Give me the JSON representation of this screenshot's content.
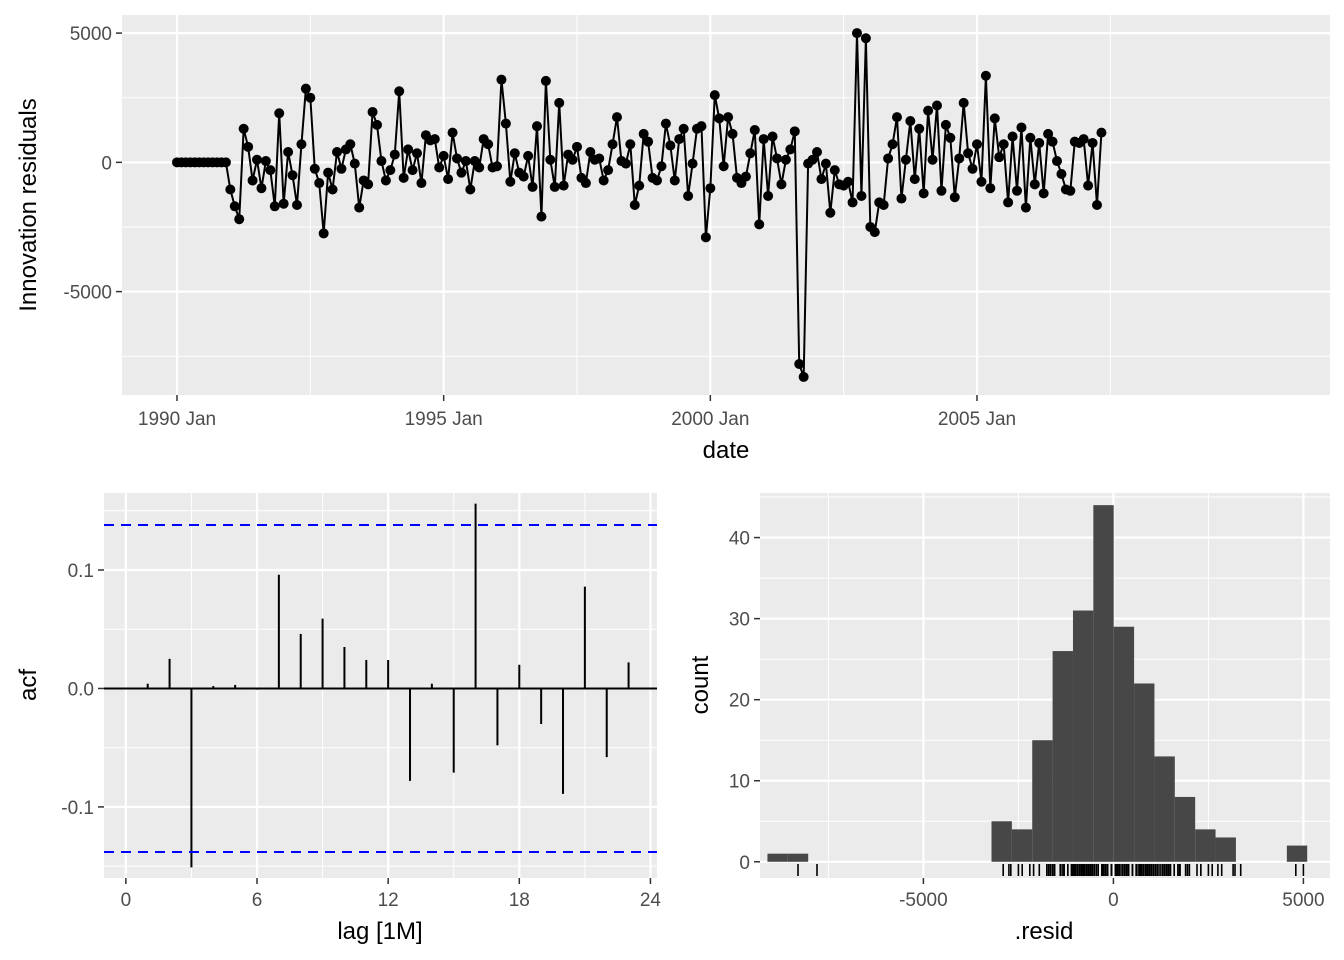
{
  "chart_data": [
    {
      "type": "line",
      "xlabel": "date",
      "ylabel": "Innovation residuals",
      "x_tick_labels": [
        "1990 Jan",
        "1995 Jan",
        "2000 Jan",
        "2005 Jan"
      ],
      "y_ticks": [
        5000,
        0,
        -5000
      ],
      "y_tick_labels": [
        "5000",
        "0",
        "-5000"
      ],
      "ylim": [
        -9000,
        5700
      ],
      "start": "1990 Jan",
      "frequency": "monthly",
      "line_color": "#000000",
      "values": [
        0,
        0,
        0,
        0,
        0,
        0,
        0,
        0,
        0,
        0,
        0,
        0,
        -1050,
        -1700,
        -2200,
        1300,
        600,
        -700,
        100,
        -1000,
        50,
        -300,
        -1700,
        1900,
        -1600,
        400,
        -500,
        -1650,
        700,
        2850,
        2500,
        -250,
        -800,
        -2750,
        -400,
        -1050,
        400,
        -250,
        500,
        700,
        -50,
        -1750,
        -700,
        -850,
        1950,
        1450,
        50,
        -700,
        -300,
        300,
        2750,
        -600,
        500,
        -300,
        350,
        -800,
        1050,
        850,
        900,
        -200,
        250,
        -650,
        1150,
        150,
        -400,
        50,
        -1050,
        50,
        -200,
        900,
        700,
        -200,
        -150,
        3200,
        1500,
        -750,
        350,
        -400,
        -550,
        250,
        -950,
        1400,
        -2100,
        3150,
        100,
        -950,
        2300,
        -900,
        300,
        100,
        600,
        -600,
        -800,
        400,
        100,
        150,
        -700,
        -300,
        700,
        1750,
        50,
        -50,
        700,
        -1650,
        -900,
        1100,
        800,
        -600,
        -700,
        -150,
        1500,
        650,
        -700,
        900,
        1300,
        -1300,
        -50,
        1300,
        1400,
        -2900,
        -1000,
        2600,
        1700,
        -150,
        1750,
        1100,
        -600,
        -800,
        -550,
        350,
        1250,
        -2400,
        900,
        -1300,
        1000,
        150,
        -850,
        100,
        500,
        1200,
        -7800,
        -8300,
        -50,
        100,
        400,
        -650,
        -50,
        -1950,
        -300,
        -850,
        -900,
        -750,
        -1550,
        5000,
        -1300,
        4800,
        -2500,
        -2700,
        -1550,
        -1650,
        150,
        700,
        1750,
        -1400,
        100,
        1600,
        -650,
        1300,
        -1200,
        2000,
        100,
        2200,
        -1100,
        1450,
        950,
        -1350,
        150,
        2300,
        350,
        -250,
        700,
        -750,
        3350,
        -1000,
        1700,
        200,
        700,
        -1550,
        1000,
        -1100,
        1350,
        -1750,
        950,
        -850,
        750,
        -1200,
        1100,
        800,
        50,
        -450,
        -1050,
        -1100,
        800,
        750,
        900,
        -900,
        750,
        -1650,
        1150
      ]
    },
    {
      "type": "bar",
      "xlabel": "lag [1M]",
      "ylabel": "acf",
      "x_ticks": [
        0,
        6,
        12,
        18,
        24
      ],
      "xlim": [
        0,
        24
      ],
      "y_ticks": [
        0.1,
        0.0,
        -0.1
      ],
      "y_tick_labels": [
        "0.1",
        "0.0",
        "-0.1"
      ],
      "ylim": [
        -0.16,
        0.165
      ],
      "lags": [
        1,
        2,
        3,
        4,
        5,
        6,
        7,
        8,
        9,
        10,
        11,
        12,
        13,
        14,
        15,
        16,
        17,
        18,
        19,
        20,
        21,
        22,
        23
      ],
      "values": [
        0.004,
        0.025,
        -0.151,
        0.002,
        0.003,
        -0.001,
        0.096,
        0.046,
        0.059,
        0.035,
        0.024,
        0.024,
        -0.078,
        0.004,
        -0.071,
        0.156,
        -0.048,
        0.02,
        -0.03,
        -0.089,
        0.086,
        -0.058,
        0.022
      ],
      "confidence_bounds": [
        0.138,
        -0.138
      ],
      "bound_color": "#0000ff"
    },
    {
      "type": "bar",
      "xlabel": ".resid",
      "ylabel": "count",
      "x_ticks": [
        -5000,
        0,
        5000
      ],
      "x_tick_labels": [
        "-5000",
        "0",
        "5000"
      ],
      "xlim": [
        -9300,
        5700
      ],
      "y_ticks": [
        0,
        10,
        20,
        30,
        40
      ],
      "ylim": [
        -2,
        45.5
      ],
      "bin_width": 536,
      "bins": [
        {
          "x": -8836,
          "count": 1
        },
        {
          "x": -8300,
          "count": 1
        },
        {
          "x": -2940,
          "count": 5
        },
        {
          "x": -2404,
          "count": 4
        },
        {
          "x": -1868,
          "count": 15
        },
        {
          "x": -1332,
          "count": 26
        },
        {
          "x": -796,
          "count": 31
        },
        {
          "x": -260,
          "count": 44
        },
        {
          "x": 276,
          "count": 29
        },
        {
          "x": 812,
          "count": 22
        },
        {
          "x": 1348,
          "count": 13
        },
        {
          "x": 1884,
          "count": 8
        },
        {
          "x": 2420,
          "count": 4
        },
        {
          "x": 2956,
          "count": 3
        },
        {
          "x": 4832,
          "count": 2
        }
      ],
      "bar_color": "#474747"
    }
  ]
}
